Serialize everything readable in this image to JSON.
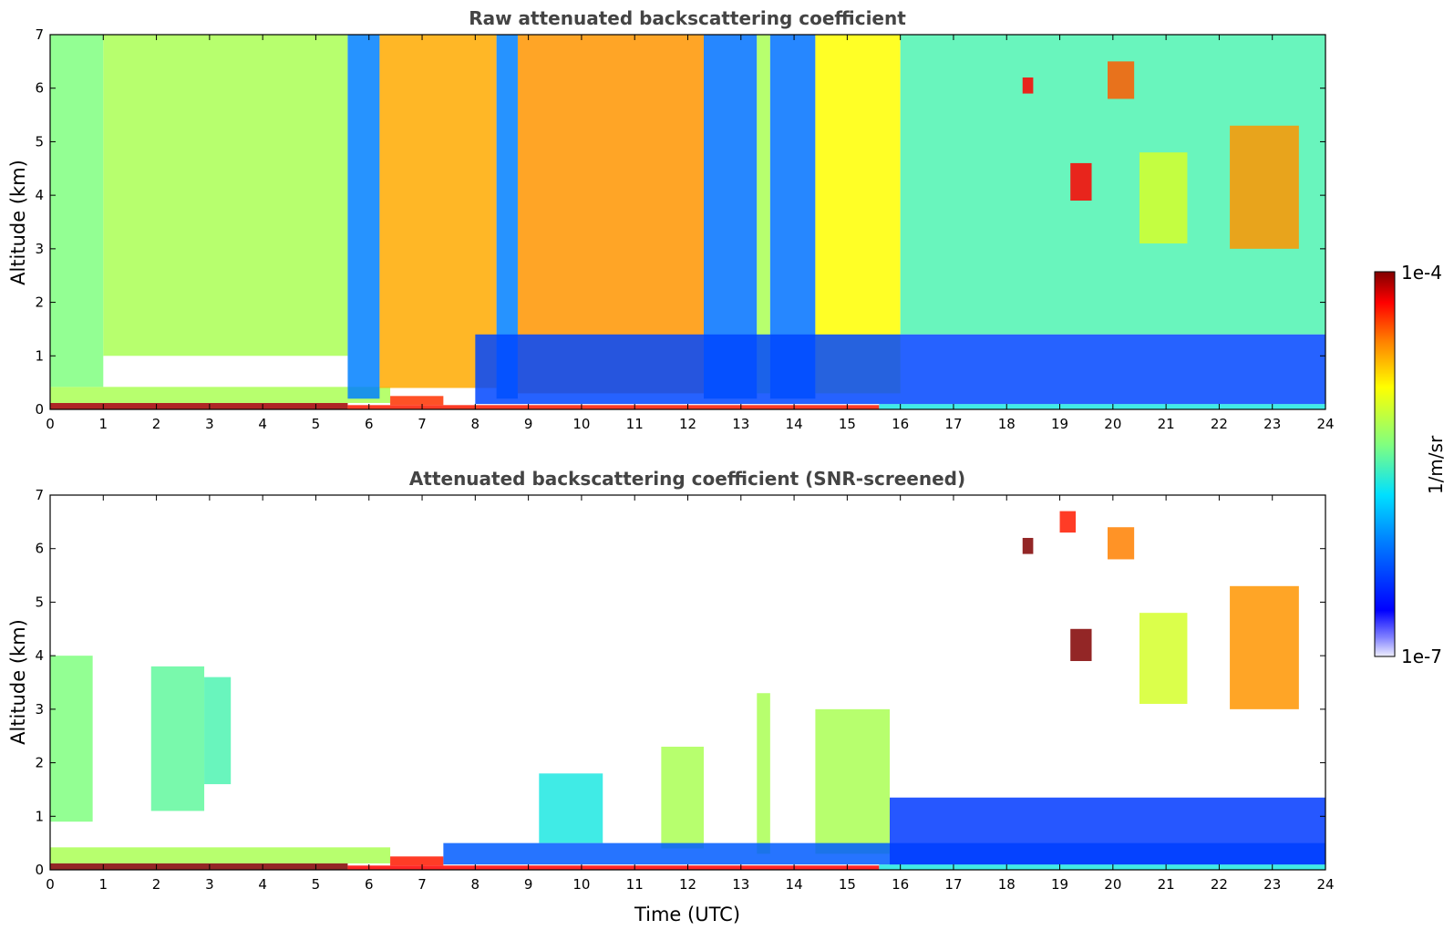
{
  "chart_data": [
    {
      "type": "heatmap",
      "title": "Raw attenuated backscattering coefficient",
      "xlabel": "",
      "ylabel": "Altitude (km)",
      "xlim": [
        0,
        24
      ],
      "ylim": [
        0,
        7
      ],
      "xticks": [
        "0",
        "1",
        "2",
        "3",
        "4",
        "5",
        "6",
        "7",
        "8",
        "9",
        "10",
        "11",
        "12",
        "13",
        "14",
        "15",
        "16",
        "17",
        "18",
        "19",
        "20",
        "21",
        "22",
        "23",
        "24"
      ],
      "yticks": [
        "0",
        "1",
        "2",
        "3",
        "4",
        "5",
        "6",
        "7"
      ],
      "grid": false,
      "cells": [
        {
          "t0": 0,
          "t1": 5.6,
          "z0": 0,
          "z1": 0.12,
          "level": 0.98
        },
        {
          "t0": 5.6,
          "t1": 15.6,
          "z0": 0,
          "z1": 0.08,
          "level": 0.9
        },
        {
          "t0": 15.6,
          "t1": 24,
          "z0": 0,
          "z1": 0.1,
          "level": 0.45
        },
        {
          "t0": 0,
          "t1": 6.4,
          "z0": 0.12,
          "z1": 0.42,
          "level": 0.6
        },
        {
          "t0": 6.4,
          "t1": 7.4,
          "z0": 0.08,
          "z1": 0.25,
          "level": 0.88
        },
        {
          "t0": 0,
          "t1": 1.0,
          "z0": 0.42,
          "z1": 7,
          "level": 0.55
        },
        {
          "t0": 1.0,
          "t1": 5.6,
          "z0": 1.0,
          "z1": 7,
          "level": 0.6
        },
        {
          "t0": 5.6,
          "t1": 6.2,
          "z0": 0.2,
          "z1": 7,
          "level": 0.3
        },
        {
          "t0": 6.2,
          "t1": 8.4,
          "z0": 0.4,
          "z1": 7,
          "level": 0.78
        },
        {
          "t0": 8.4,
          "t1": 8.8,
          "z0": 0.2,
          "z1": 7,
          "level": 0.3
        },
        {
          "t0": 8.8,
          "t1": 12.3,
          "z0": 0.3,
          "z1": 7,
          "level": 0.8
        },
        {
          "t0": 12.3,
          "t1": 13.3,
          "z0": 0.2,
          "z1": 7,
          "level": 0.28
        },
        {
          "t0": 13.3,
          "t1": 13.55,
          "z0": 0.3,
          "z1": 7,
          "level": 0.6
        },
        {
          "t0": 13.55,
          "t1": 14.4,
          "z0": 0.2,
          "z1": 7,
          "level": 0.28
        },
        {
          "t0": 14.4,
          "t1": 16.0,
          "z0": 0.3,
          "z1": 7,
          "level": 0.7
        },
        {
          "t0": 16.0,
          "t1": 24,
          "z0": 1.4,
          "z1": 7,
          "level": 0.5
        },
        {
          "t0": 8.0,
          "t1": 24,
          "z0": 0.1,
          "z1": 1.4,
          "level": 0.22
        },
        {
          "t0": 18.3,
          "t1": 18.5,
          "z0": 5.9,
          "z1": 6.2,
          "level": 0.92
        },
        {
          "t0": 19.2,
          "t1": 19.6,
          "z0": 3.9,
          "z1": 4.6,
          "level": 0.92
        },
        {
          "t0": 19.9,
          "t1": 20.4,
          "z0": 5.8,
          "z1": 6.5,
          "level": 0.85
        },
        {
          "t0": 20.5,
          "t1": 21.4,
          "z0": 3.1,
          "z1": 4.8,
          "level": 0.65
        },
        {
          "t0": 22.2,
          "t1": 23.5,
          "z0": 3.0,
          "z1": 5.3,
          "level": 0.8
        }
      ]
    },
    {
      "type": "heatmap",
      "title": "Attenuated backscattering coefficient (SNR-screened)",
      "xlabel": "Time (UTC)",
      "ylabel": "Altitude (km)",
      "xlim": [
        0,
        24
      ],
      "ylim": [
        0,
        7
      ],
      "xticks": [
        "0",
        "1",
        "2",
        "3",
        "4",
        "5",
        "6",
        "7",
        "8",
        "9",
        "10",
        "11",
        "12",
        "13",
        "14",
        "15",
        "16",
        "17",
        "18",
        "19",
        "20",
        "21",
        "22",
        "23",
        "24"
      ],
      "yticks": [
        "0",
        "1",
        "2",
        "3",
        "4",
        "5",
        "6",
        "7"
      ],
      "grid": false,
      "cells": [
        {
          "t0": 0,
          "t1": 5.6,
          "z0": 0,
          "z1": 0.12,
          "level": 1.0
        },
        {
          "t0": 5.6,
          "t1": 15.6,
          "z0": 0,
          "z1": 0.08,
          "level": 0.92
        },
        {
          "t0": 15.6,
          "t1": 24,
          "z0": 0,
          "z1": 0.1,
          "level": 0.45
        },
        {
          "t0": 0,
          "t1": 6.4,
          "z0": 0.12,
          "z1": 0.42,
          "level": 0.6
        },
        {
          "t0": 6.4,
          "t1": 7.4,
          "z0": 0.08,
          "z1": 0.25,
          "level": 0.9
        },
        {
          "t0": 0,
          "t1": 0.8,
          "z0": 0.9,
          "z1": 4.0,
          "level": 0.55
        },
        {
          "t0": 1.9,
          "t1": 2.9,
          "z0": 1.1,
          "z1": 3.8,
          "level": 0.52
        },
        {
          "t0": 2.9,
          "t1": 3.4,
          "z0": 1.6,
          "z1": 3.6,
          "level": 0.5
        },
        {
          "t0": 9.2,
          "t1": 10.4,
          "z0": 0.5,
          "z1": 1.8,
          "level": 0.45
        },
        {
          "t0": 11.5,
          "t1": 12.3,
          "z0": 0.4,
          "z1": 2.3,
          "level": 0.6
        },
        {
          "t0": 13.3,
          "t1": 13.55,
          "z0": 0.3,
          "z1": 3.3,
          "level": 0.6
        },
        {
          "t0": 14.4,
          "t1": 15.8,
          "z0": 0.3,
          "z1": 3.0,
          "level": 0.6
        },
        {
          "t0": 7.4,
          "t1": 24,
          "z0": 0.1,
          "z1": 0.5,
          "level": 0.25
        },
        {
          "t0": 15.8,
          "t1": 24,
          "z0": 0.1,
          "z1": 1.35,
          "level": 0.2
        },
        {
          "t0": 18.3,
          "t1": 18.5,
          "z0": 5.9,
          "z1": 6.2,
          "level": 1.0
        },
        {
          "t0": 19.2,
          "t1": 19.6,
          "z0": 3.9,
          "z1": 4.5,
          "level": 1.0
        },
        {
          "t0": 19.0,
          "t1": 19.3,
          "z0": 6.3,
          "z1": 6.7,
          "level": 0.9
        },
        {
          "t0": 19.9,
          "t1": 20.4,
          "z0": 5.8,
          "z1": 6.4,
          "level": 0.82
        },
        {
          "t0": 20.5,
          "t1": 21.4,
          "z0": 3.1,
          "z1": 4.8,
          "level": 0.65
        },
        {
          "t0": 22.2,
          "t1": 23.5,
          "z0": 3.0,
          "z1": 5.3,
          "level": 0.8
        }
      ]
    }
  ],
  "colorbar": {
    "label": "1/m/sr",
    "max_label": "1e-4",
    "min_label": "1e-7",
    "colormap": "jet",
    "scale": "log"
  }
}
